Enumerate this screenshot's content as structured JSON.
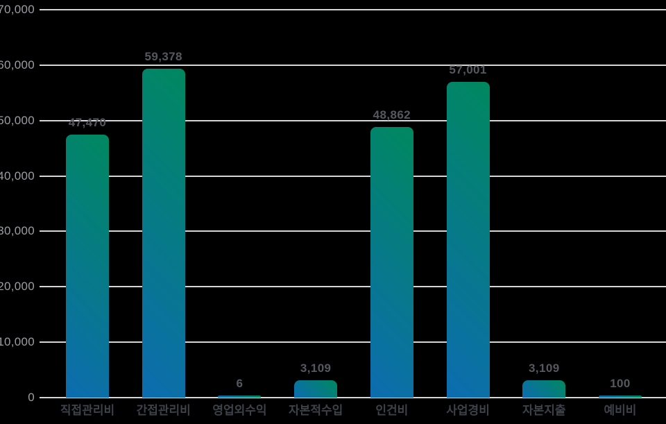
{
  "chart_data": {
    "type": "bar",
    "title": "",
    "xlabel": "",
    "ylabel": "",
    "categories": [
      "직접관리비",
      "간접관리비",
      "영업외수익",
      "자본적수입",
      "인건비",
      "사업경비",
      "자본지출",
      "예비비"
    ],
    "values": [
      47470,
      59378,
      6,
      3109,
      48862,
      57001,
      3109,
      100
    ],
    "value_labels": [
      "47,470",
      "59,378",
      "6",
      "3,109",
      "48,862",
      "57,001",
      "3,109",
      "100"
    ],
    "ylim": [
      0,
      70000
    ],
    "ytick_interval": 10000,
    "ytick_labels": [
      "0",
      "10,000",
      "20,000",
      "30,000",
      "40,000",
      "50,000",
      "60,000",
      "70,000"
    ],
    "grid": true,
    "legend": false
  },
  "style": {
    "background_color": "#000000",
    "gridline_color": "#d6d7d8",
    "ytick_label_color": "#9b9ea2",
    "value_label_color": "#55595f",
    "category_label_color": "#3d424a",
    "bar_gradient_start": "#0d6cb0",
    "bar_gradient_end": "#00885f"
  }
}
